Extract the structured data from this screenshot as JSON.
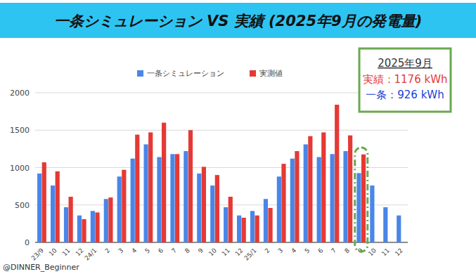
{
  "chart_data": {
    "type": "bar",
    "title": "一条シミュレーション VS 実績 (2025年9月の発電量)",
    "categories": [
      "23/9",
      "10",
      "11",
      "12",
      "24/1",
      "2",
      "3",
      "4",
      "5",
      "6",
      "7",
      "8",
      "9",
      "10",
      "11",
      "12",
      "25/1",
      "2",
      "3",
      "4",
      "5",
      "6",
      "7",
      "8",
      "9",
      "10",
      "11",
      "12"
    ],
    "series": [
      {
        "name": "一条シミュレーション",
        "color": "#4a86e8",
        "values": [
          920,
          760,
          470,
          360,
          420,
          580,
          880,
          1120,
          1310,
          1140,
          1180,
          1220,
          920,
          760,
          470,
          360,
          420,
          580,
          880,
          1120,
          1310,
          1140,
          1180,
          1220,
          926,
          760,
          470,
          360
        ]
      },
      {
        "name": "実測値",
        "color": "#e53935",
        "values": [
          1070,
          950,
          610,
          310,
          400,
          600,
          970,
          1440,
          1470,
          1600,
          1180,
          1500,
          1010,
          900,
          610,
          330,
          360,
          460,
          1050,
          1220,
          1420,
          1470,
          1840,
          1430,
          1176,
          null,
          null,
          null
        ]
      }
    ],
    "ylim": [
      0,
      2000
    ],
    "yticks": [
      0,
      500,
      1000,
      1500,
      2000
    ],
    "grid": true,
    "legend": "top",
    "annotation": {
      "heading": "2025年9月",
      "lines": [
        "実績：1176 kWh",
        "一条：926 kWh"
      ]
    },
    "credit": "@DINNER_Beginner"
  }
}
